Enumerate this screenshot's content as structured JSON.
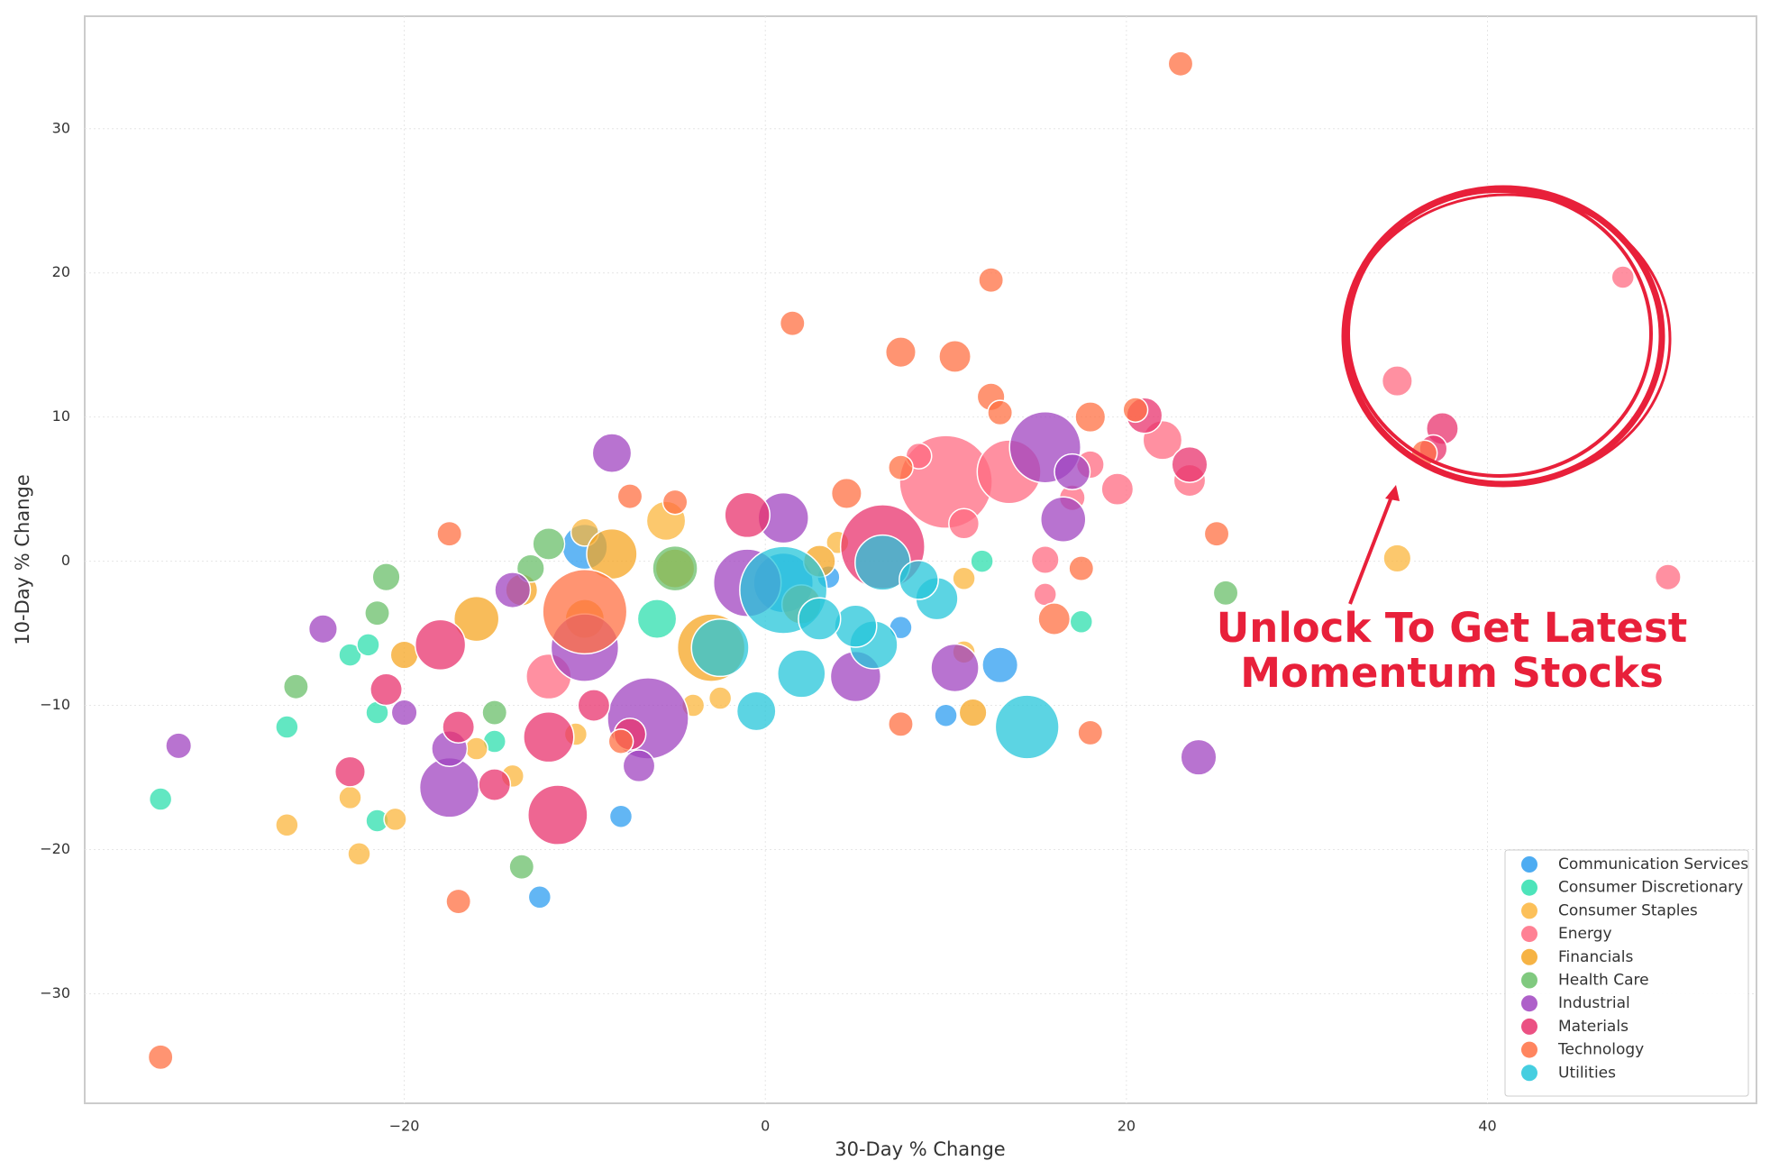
{
  "chart_data": {
    "type": "scatter",
    "x_label": "30-Day % Change",
    "y_label": "10-Day % Change",
    "xlim": [
      -37.7,
      54.9
    ],
    "ylim": [
      -37.6,
      37.8
    ],
    "xticks": [
      {
        "value": -20,
        "label": "−20"
      },
      0,
      20,
      40
    ],
    "yticks": [
      {
        "value": -30,
        "label": "−30"
      },
      {
        "value": -20,
        "label": "−20"
      },
      {
        "value": -10,
        "label": "−10"
      },
      0,
      10,
      20,
      30
    ],
    "grid": true,
    "legend": "lower right",
    "annotation": [
      "Unlock To Get Latest",
      "Momentum Stocks"
    ],
    "series": [
      {
        "name": "Communication Services",
        "color": "#2e9ef0",
        "x": [
          -12.5,
          -8,
          3.5,
          10,
          13,
          -10,
          7.5,
          1
        ],
        "values": [
          -23.3,
          -17.7,
          -1.1,
          -10.7,
          -7.2,
          1,
          -4.6,
          -1.5
        ],
        "sizes": [
          100,
          100,
          100,
          100,
          250,
          400,
          100,
          700
        ]
      },
      {
        "name": "Consumer Discretionary",
        "color": "#2edfae",
        "x": [
          -33.5,
          -26.5,
          -21.5,
          -23,
          -21.5,
          12,
          17.5,
          -15,
          -22,
          -6
        ],
        "values": [
          -16.5,
          -11.5,
          -18,
          -6.5,
          -10.5,
          0,
          -4.2,
          -12.5,
          -5.8,
          -4
        ],
        "sizes": [
          100,
          100,
          100,
          100,
          100,
          100,
          100,
          100,
          100,
          300
        ]
      },
      {
        "name": "Consumer Staples",
        "color": "#fbb53c",
        "x": [
          -26.5,
          -23,
          -22.5,
          -20.5,
          -14,
          -16,
          -10.5,
          -4,
          -2.5,
          11,
          11,
          4,
          35,
          -10,
          -5.5
        ],
        "values": [
          -18.3,
          -16.4,
          -20.3,
          -17.9,
          -14.9,
          -13,
          -12,
          -10,
          -9.5,
          -1.2,
          -6.3,
          1.3,
          0.2,
          2,
          2.8
        ],
        "sizes": [
          100,
          100,
          100,
          100,
          100,
          100,
          100,
          100,
          100,
          100,
          100,
          100,
          150,
          150,
          300
        ]
      },
      {
        "name": "Energy",
        "color": "#ff6b81",
        "x": [
          47.5,
          35,
          50,
          10,
          13.5,
          22,
          18,
          19.5,
          17,
          15.5,
          11,
          8.5,
          23.5,
          -12,
          15.5
        ],
        "values": [
          19.7,
          12.5,
          -1.1,
          5.5,
          6.2,
          8.4,
          6.7,
          5,
          4.4,
          0.1,
          2.6,
          7.3,
          5.6,
          -8,
          -2.3
        ],
        "sizes": [
          100,
          180,
          130,
          1700,
          800,
          300,
          150,
          200,
          130,
          150,
          180,
          130,
          200,
          400,
          100
        ]
      },
      {
        "name": "Financials",
        "color": "#f5a623",
        "x": [
          -13.5,
          -8.5,
          -5,
          2,
          -3,
          11.5,
          -10,
          -16,
          -20,
          3
        ],
        "values": [
          -2,
          0.5,
          -0.5,
          -3,
          -6,
          -10.5,
          -4,
          -4,
          -6.5,
          0
        ],
        "sizes": [
          200,
          500,
          300,
          300,
          900,
          150,
          300,
          400,
          150,
          200
        ]
      },
      {
        "name": "Health Care",
        "color": "#6abf69",
        "x": [
          -26,
          -21,
          -21.5,
          -13.5,
          -13,
          25.5,
          -5,
          -12,
          -15
        ],
        "values": [
          -8.7,
          -1.1,
          -3.6,
          -21.2,
          -0.5,
          -2.2,
          -0.5,
          1.2,
          -10.5
        ],
        "sizes": [
          120,
          150,
          120,
          120,
          150,
          120,
          400,
          200,
          120
        ]
      },
      {
        "name": "Industrial",
        "color": "#a044c0",
        "x": [
          -32.5,
          -24.5,
          -17.5,
          -8.5,
          24,
          15.5,
          16.5,
          17,
          10.5,
          -6.5,
          1,
          -1,
          -10,
          -14,
          -17.5,
          -7,
          -20,
          5
        ],
        "values": [
          -12.8,
          -4.7,
          -15.7,
          7.5,
          -13.6,
          7.9,
          2.9,
          6.2,
          -7.4,
          -10.9,
          3,
          -1.5,
          -6,
          -2,
          -13,
          -14.2,
          -10.5,
          -8
        ],
        "sizes": [
          130,
          160,
          700,
          300,
          250,
          1000,
          400,
          250,
          450,
          1300,
          500,
          900,
          900,
          250,
          250,
          200,
          130,
          500
        ]
      },
      {
        "name": "Materials",
        "color": "#e8336d",
        "x": [
          37.5,
          37,
          -11.5,
          -12,
          -23,
          -15,
          -21,
          21,
          23.5,
          6.5,
          -1,
          -17,
          -18,
          -9.5,
          -7.5
        ],
        "values": [
          9.2,
          7.8,
          -17.6,
          -12.2,
          -14.6,
          -15.5,
          -8.9,
          10.1,
          6.7,
          1,
          3.2,
          -11.5,
          -5.8,
          -10,
          -12
        ],
        "sizes": [
          200,
          150,
          700,
          500,
          180,
          200,
          200,
          250,
          250,
          1400,
          400,
          200,
          500,
          200,
          200
        ]
      },
      {
        "name": "Technology",
        "color": "#ff7043",
        "x": [
          23,
          -33.5,
          12.5,
          1.5,
          7.5,
          10.5,
          12.5,
          13,
          20.5,
          18,
          25,
          7.5,
          4.5,
          -7.5,
          -5,
          -17.5,
          -17,
          7.5,
          18,
          -10,
          16,
          17.5,
          -8,
          36.5
        ],
        "values": [
          34.5,
          -34.4,
          19.5,
          16.5,
          14.5,
          14.2,
          11.4,
          10.3,
          10.5,
          10,
          1.9,
          6.5,
          4.7,
          4.5,
          4.1,
          1.9,
          -23.6,
          -11.3,
          -11.9,
          -3.5,
          -4,
          -0.5,
          -12.5,
          7.5
        ],
        "sizes": [
          120,
          120,
          120,
          120,
          180,
          200,
          150,
          120,
          120,
          180,
          120,
          120,
          180,
          120,
          120,
          120,
          120,
          120,
          120,
          1400,
          200,
          120,
          120,
          130
        ]
      },
      {
        "name": "Utilities",
        "color": "#26c6da",
        "x": [
          -0.5,
          14.5,
          2,
          1,
          6.5,
          6,
          9.5,
          8.5,
          5,
          -2.5,
          3
        ],
        "values": [
          -10.4,
          -11.5,
          -7.8,
          -2,
          -0.1,
          -5.8,
          -2.6,
          -1.3,
          -4.5,
          -6,
          -4
        ],
        "sizes": [
          300,
          800,
          450,
          1500,
          600,
          450,
          350,
          300,
          350,
          650,
          350
        ]
      }
    ]
  }
}
